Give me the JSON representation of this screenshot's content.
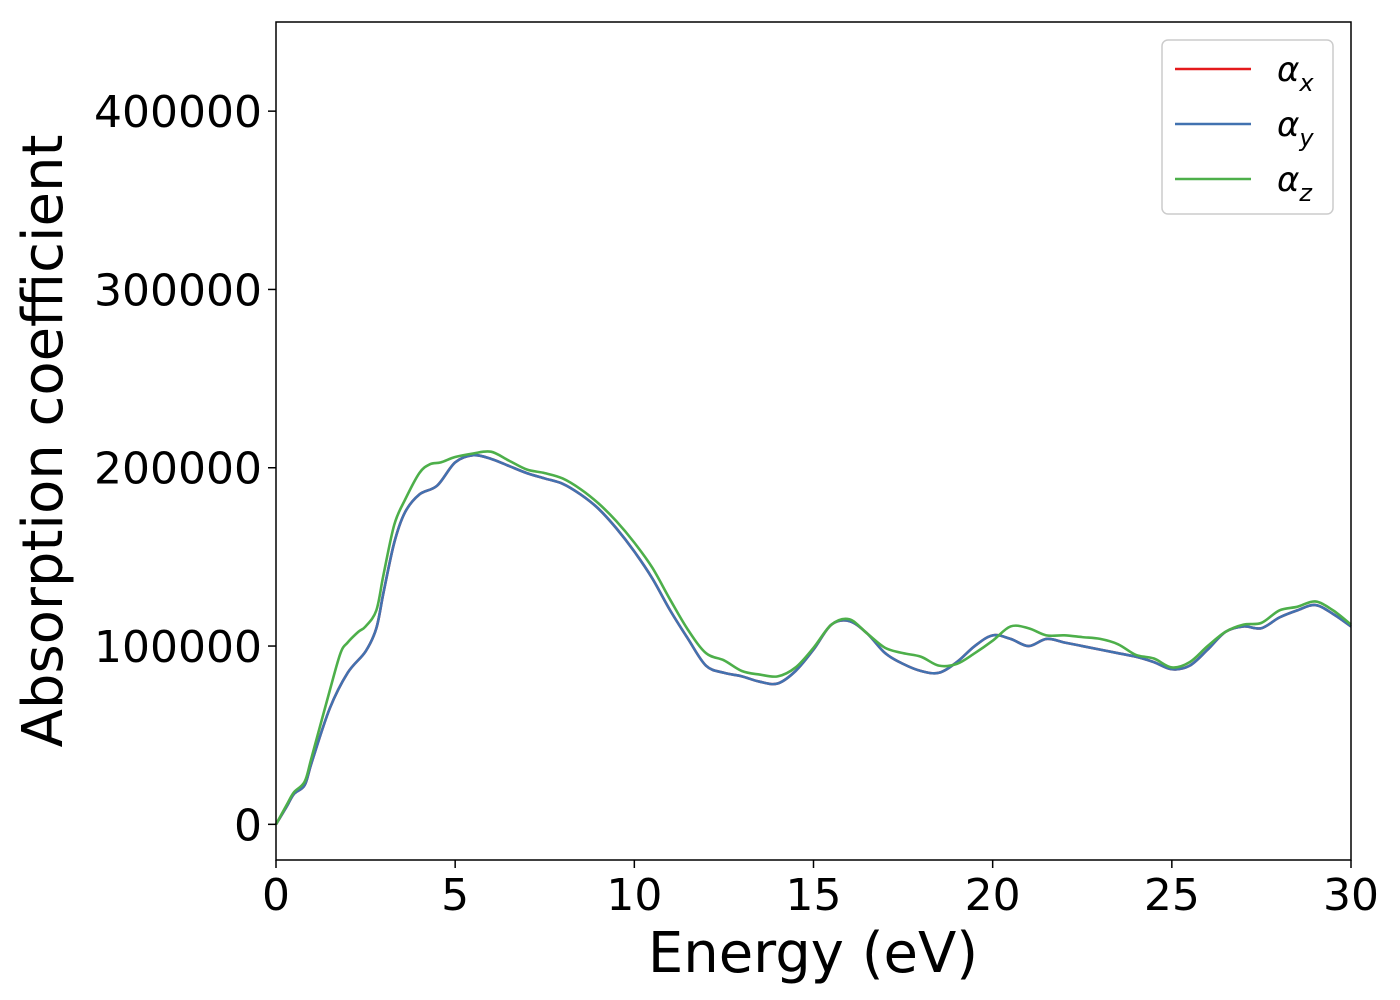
{
  "chart_data": {
    "type": "line",
    "title": "",
    "xlabel": "Energy (eV)",
    "ylabel": "Absorption coefficient",
    "xlim": [
      0,
      30
    ],
    "ylim": [
      -20000,
      450000
    ],
    "xticks": [
      0,
      5,
      10,
      15,
      20,
      25,
      30
    ],
    "yticks": [
      0,
      100000,
      200000,
      300000,
      400000
    ],
    "grid": false,
    "legend_position": "top-right",
    "series": [
      {
        "name": "α",
        "sub": "x",
        "color": "#e41a1c",
        "x": [
          0,
          0.3,
          0.5,
          0.8,
          1.0,
          1.5,
          2.0,
          2.5,
          2.8,
          3.0,
          3.3,
          3.6,
          4.0,
          4.5,
          5.0,
          5.5,
          6.0,
          6.5,
          7.0,
          7.5,
          8.0,
          8.5,
          9.0,
          9.5,
          10.0,
          10.5,
          11.0,
          11.5,
          12.0,
          12.5,
          13.0,
          13.5,
          14.0,
          14.5,
          15.0,
          15.5,
          16.0,
          16.5,
          17.0,
          17.5,
          18.0,
          18.5,
          19.0,
          19.5,
          20.0,
          20.5,
          21.0,
          21.5,
          22.0,
          22.5,
          23.0,
          23.5,
          24.0,
          24.5,
          25.0,
          25.5,
          26.0,
          26.5,
          27.0,
          27.5,
          28.0,
          28.5,
          29.0,
          29.5,
          30.0
        ],
        "y": [
          0,
          10000,
          17000,
          22000,
          35000,
          65000,
          85000,
          97000,
          110000,
          130000,
          158000,
          175000,
          185000,
          190000,
          203000,
          207000,
          205000,
          201000,
          197000,
          194000,
          191000,
          185000,
          177000,
          166000,
          153000,
          138000,
          120000,
          104000,
          89000,
          85000,
          83000,
          80000,
          79000,
          86000,
          98000,
          112000,
          114000,
          107000,
          96000,
          90000,
          86000,
          85000,
          91000,
          100000,
          106000,
          104000,
          100000,
          104000,
          102000,
          100000,
          98000,
          96000,
          94000,
          91000,
          87000,
          89000,
          98000,
          108000,
          111000,
          110000,
          116000,
          120000,
          123000,
          118000,
          111000
        ]
      },
      {
        "name": "α",
        "sub": "y",
        "color": "#4272b0",
        "x": [
          0,
          0.3,
          0.5,
          0.8,
          1.0,
          1.5,
          2.0,
          2.5,
          2.8,
          3.0,
          3.3,
          3.6,
          4.0,
          4.5,
          5.0,
          5.5,
          6.0,
          6.5,
          7.0,
          7.5,
          8.0,
          8.5,
          9.0,
          9.5,
          10.0,
          10.5,
          11.0,
          11.5,
          12.0,
          12.5,
          13.0,
          13.5,
          14.0,
          14.5,
          15.0,
          15.5,
          16.0,
          16.5,
          17.0,
          17.5,
          18.0,
          18.5,
          19.0,
          19.5,
          20.0,
          20.5,
          21.0,
          21.5,
          22.0,
          22.5,
          23.0,
          23.5,
          24.0,
          24.5,
          25.0,
          25.5,
          26.0,
          26.5,
          27.0,
          27.5,
          28.0,
          28.5,
          29.0,
          29.5,
          30.0
        ],
        "y": [
          0,
          10000,
          17000,
          22000,
          35000,
          65000,
          85000,
          97000,
          110000,
          130000,
          158000,
          175000,
          185000,
          190000,
          203000,
          207000,
          205000,
          201000,
          197000,
          194000,
          191000,
          185000,
          177000,
          166000,
          153000,
          138000,
          120000,
          104000,
          89000,
          85000,
          83000,
          80000,
          79000,
          86000,
          98000,
          112000,
          114000,
          107000,
          96000,
          90000,
          86000,
          85000,
          91000,
          100000,
          106000,
          104000,
          100000,
          104000,
          102000,
          100000,
          98000,
          96000,
          94000,
          91000,
          87000,
          89000,
          98000,
          108000,
          111000,
          110000,
          116000,
          120000,
          123000,
          118000,
          111000
        ]
      },
      {
        "name": "α",
        "sub": "z",
        "color": "#4daf4a",
        "x": [
          0,
          0.3,
          0.5,
          0.8,
          1.0,
          1.5,
          1.8,
          2.0,
          2.3,
          2.5,
          2.8,
          3.0,
          3.3,
          3.6,
          4.0,
          4.3,
          4.6,
          5.0,
          5.5,
          6.0,
          6.5,
          7.0,
          7.5,
          8.0,
          8.5,
          9.0,
          9.5,
          10.0,
          10.5,
          11.0,
          11.5,
          12.0,
          12.5,
          13.0,
          13.5,
          14.0,
          14.5,
          15.0,
          15.5,
          16.0,
          16.5,
          17.0,
          17.5,
          18.0,
          18.5,
          19.0,
          19.5,
          20.0,
          20.5,
          21.0,
          21.5,
          22.0,
          22.5,
          23.0,
          23.5,
          24.0,
          24.5,
          25.0,
          25.5,
          26.0,
          26.5,
          27.0,
          27.5,
          28.0,
          28.5,
          29.0,
          29.5,
          30.0
        ],
        "y": [
          0,
          11000,
          18000,
          24000,
          38000,
          75000,
          96000,
          102000,
          108000,
          111000,
          120000,
          140000,
          168000,
          182000,
          197000,
          202000,
          203000,
          206000,
          208000,
          209000,
          204000,
          199000,
          197000,
          194000,
          188000,
          180000,
          170000,
          158000,
          144000,
          126000,
          109000,
          96000,
          92000,
          86000,
          84000,
          83000,
          88000,
          99000,
          112000,
          115000,
          107000,
          99000,
          96000,
          94000,
          89000,
          90000,
          96000,
          103000,
          111000,
          110000,
          106000,
          106000,
          105000,
          104000,
          101000,
          95000,
          93000,
          88000,
          91000,
          100000,
          108000,
          112000,
          113000,
          120000,
          122000,
          125000,
          120000,
          112000
        ]
      }
    ]
  }
}
